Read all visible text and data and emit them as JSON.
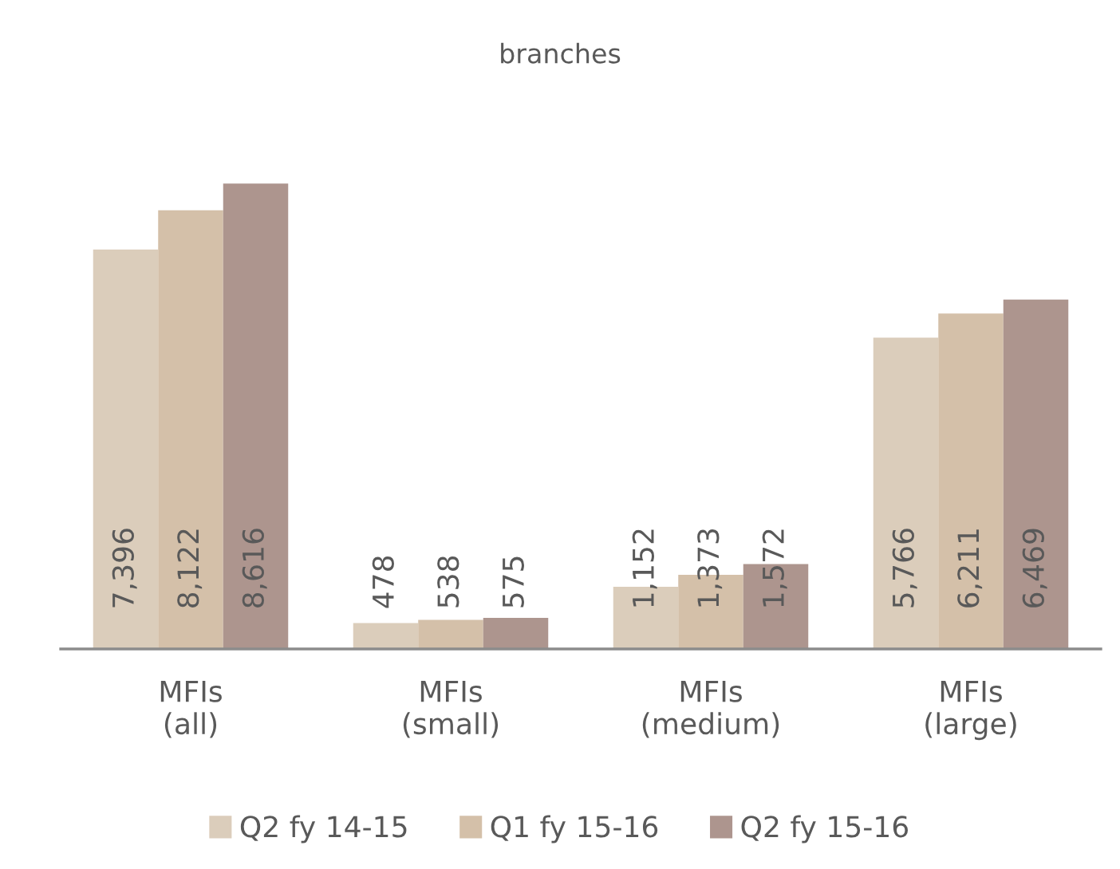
{
  "chart_data": {
    "type": "bar",
    "title": "branches",
    "categories": [
      "MFIs\n(all)",
      "MFIs\n(small)",
      "MFIs\n(medium)",
      "MFIs\n(large)"
    ],
    "series": [
      {
        "name": "Q2 fy 14-15",
        "color": "#dbcdbb",
        "values": [
          7396,
          478,
          1152,
          5766
        ],
        "value_labels": [
          "7,396",
          "478",
          "1,152",
          "5,766"
        ]
      },
      {
        "name": "Q1 fy 15-16",
        "color": "#d4c0a9",
        "values": [
          8122,
          538,
          1373,
          6211
        ],
        "value_labels": [
          "8,122",
          "538",
          "1,373",
          "6,211"
        ]
      },
      {
        "name": "Q2 fy 15-16",
        "color": "#ad958e",
        "values": [
          8616,
          575,
          1572,
          6469
        ],
        "value_labels": [
          "8,616",
          "575",
          "1,572",
          "6,469"
        ]
      }
    ],
    "legend": "bottom",
    "grid": false
  }
}
